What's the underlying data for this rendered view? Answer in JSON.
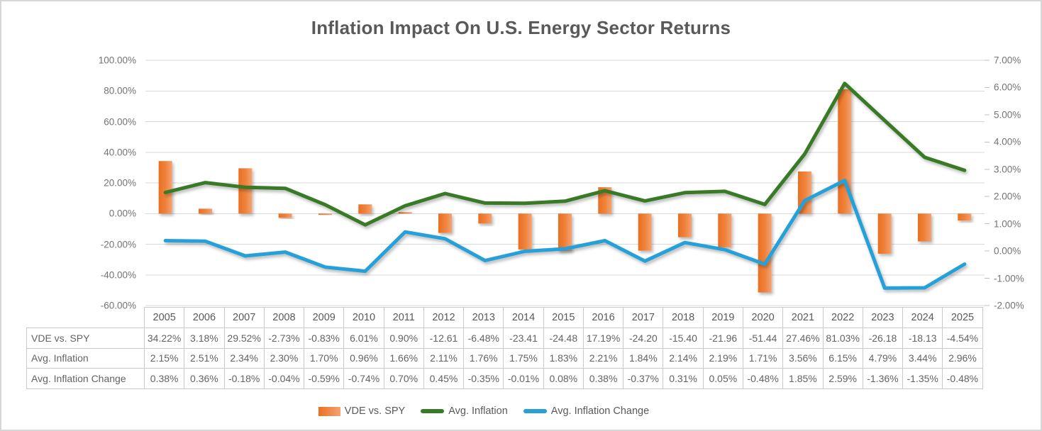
{
  "title": "Inflation Impact On U.S. Energy Sector Returns",
  "chart_data": {
    "type": "combo",
    "title": "Inflation Impact On U.S. Energy Sector Returns",
    "categories": [
      "2005",
      "2006",
      "2007",
      "2008",
      "2009",
      "2010",
      "2011",
      "2012",
      "2013",
      "2014",
      "2015",
      "2016",
      "2017",
      "2018",
      "2019",
      "2020",
      "2021",
      "2022",
      "2023",
      "2024",
      "2025"
    ],
    "series": [
      {
        "name": "VDE vs. SPY",
        "type": "bar",
        "axis": "primary",
        "color": "#ED7D31",
        "values": [
          34.22,
          3.18,
          29.52,
          -2.73,
          -0.83,
          6.01,
          0.9,
          -12.61,
          -6.48,
          -23.41,
          -24.48,
          17.19,
          -24.2,
          -15.4,
          -21.96,
          -51.44,
          27.46,
          81.03,
          -26.18,
          -18.13,
          -4.54
        ]
      },
      {
        "name": "Avg. Inflation",
        "type": "line",
        "axis": "secondary",
        "color": "#377A28",
        "values": [
          2.15,
          2.51,
          2.34,
          2.3,
          1.7,
          0.96,
          1.66,
          2.11,
          1.76,
          1.75,
          1.83,
          2.21,
          1.84,
          2.14,
          2.19,
          1.71,
          3.56,
          6.15,
          4.79,
          3.44,
          2.96
        ]
      },
      {
        "name": "Avg. Inflation Change",
        "type": "line",
        "axis": "secondary",
        "color": "#27A0D8",
        "values": [
          0.38,
          0.36,
          -0.18,
          -0.04,
          -0.59,
          -0.74,
          0.7,
          0.45,
          -0.35,
          -0.01,
          0.08,
          0.38,
          -0.37,
          0.31,
          0.05,
          -0.48,
          1.85,
          2.59,
          -1.36,
          -1.35,
          -0.48
        ]
      }
    ],
    "primary_axis": {
      "min": -60,
      "max": 100,
      "ticks": [
        "100.00%",
        "80.00%",
        "60.00%",
        "40.00%",
        "20.00%",
        "0.00%",
        "-20.00%",
        "-40.00%",
        "-60.00%"
      ]
    },
    "secondary_axis": {
      "min": -2,
      "max": 7,
      "ticks": [
        "7.00%",
        "6.00%",
        "5.00%",
        "4.00%",
        "3.00%",
        "2.00%",
        "1.00%",
        "0.00%",
        "-1.00%",
        "-2.00%"
      ]
    },
    "grid": true,
    "gridline_color": "#D9D9D9",
    "legend_position": "bottom"
  },
  "data_table": {
    "rows": [
      {
        "label": "VDE vs. SPY",
        "cells": [
          "34.22%",
          "3.18%",
          "29.52%",
          "-2.73%",
          "-0.83%",
          "6.01%",
          "0.90%",
          "-12.61",
          "-6.48%",
          "-23.41",
          "-24.48",
          "17.19%",
          "-24.20",
          "-15.40",
          "-21.96",
          "-51.44",
          "27.46%",
          "81.03%",
          "-26.18",
          "-18.13",
          "-4.54%"
        ]
      },
      {
        "label": "Avg. Inflation",
        "cells": [
          "2.15%",
          "2.51%",
          "2.34%",
          "2.30%",
          "1.70%",
          "0.96%",
          "1.66%",
          "2.11%",
          "1.76%",
          "1.75%",
          "1.83%",
          "2.21%",
          "1.84%",
          "2.14%",
          "2.19%",
          "1.71%",
          "3.56%",
          "6.15%",
          "4.79%",
          "3.44%",
          "2.96%"
        ]
      },
      {
        "label": "Avg. Inflation Change",
        "cells": [
          "0.38%",
          "0.36%",
          "-0.18%",
          "-0.04%",
          "-0.59%",
          "-0.74%",
          "0.70%",
          "0.45%",
          "-0.35%",
          "-0.01%",
          "0.08%",
          "0.38%",
          "-0.37%",
          "0.31%",
          "0.05%",
          "-0.48%",
          "1.85%",
          "2.59%",
          "-1.36%",
          "-1.35%",
          "-0.48%"
        ]
      }
    ]
  },
  "legend": {
    "items": [
      {
        "label": "VDE vs. SPY",
        "color": "#ED7D31",
        "shape": "bar"
      },
      {
        "label": "Avg. Inflation",
        "color": "#377A28",
        "shape": "line"
      },
      {
        "label": "Avg. Inflation Change",
        "color": "#27A0D8",
        "shape": "line"
      }
    ]
  }
}
